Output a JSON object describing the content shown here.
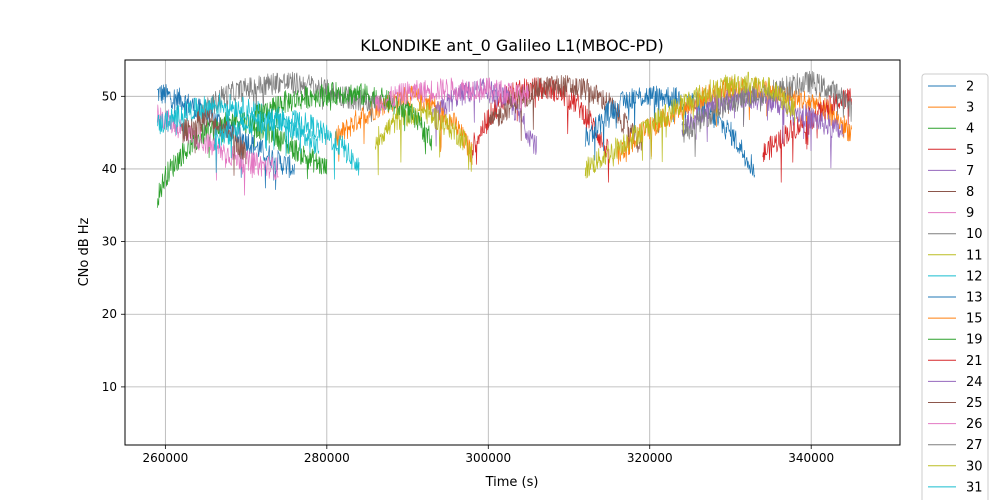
{
  "chart_data": {
    "type": "line",
    "title": "KLONDIKE ant_0 Galileo L1(MBOC-PD)",
    "xlabel": "Time (s)",
    "ylabel": "CNo dB Hz",
    "xlim": [
      255000,
      351000
    ],
    "ylim": [
      2,
      55
    ],
    "xticks": [
      {
        "value": 260000,
        "label": "260000"
      },
      {
        "value": 280000,
        "label": "280000"
      },
      {
        "value": 300000,
        "label": "300000"
      },
      {
        "value": 320000,
        "label": "320000"
      },
      {
        "value": 340000,
        "label": "340000"
      }
    ],
    "yticks": [
      {
        "value": 10,
        "label": "10"
      },
      {
        "value": 20,
        "label": "20"
      },
      {
        "value": 30,
        "label": "30"
      },
      {
        "value": 40,
        "label": "40"
      },
      {
        "value": 50,
        "label": "50"
      }
    ],
    "grid": true,
    "legend_position": "outside-right",
    "series": [
      {
        "name": "2",
        "color": "#1f77b4",
        "points": [
          [
            259000,
            50.5
          ],
          [
            262000,
            49.5
          ],
          [
            266000,
            47
          ],
          [
            270000,
            44
          ],
          [
            274000,
            41
          ],
          [
            276000,
            40
          ]
        ]
      },
      {
        "name": "3",
        "color": "#ff7f0e",
        "points": [
          [
            281000,
            44
          ],
          [
            284000,
            47
          ],
          [
            287000,
            49
          ],
          [
            290000,
            50
          ],
          [
            293000,
            49
          ],
          [
            296000,
            46
          ],
          [
            298000,
            42
          ]
        ]
      },
      {
        "name": "4",
        "color": "#2ca02c",
        "points": [
          [
            259000,
            36
          ],
          [
            260000,
            39
          ],
          [
            262000,
            42
          ],
          [
            265000,
            45
          ],
          [
            269000,
            47
          ],
          [
            273000,
            45
          ],
          [
            277000,
            42
          ],
          [
            280000,
            40
          ]
        ]
      },
      {
        "name": "5",
        "color": "#d62728",
        "points": [
          [
            298000,
            43
          ],
          [
            300000,
            47
          ],
          [
            302000,
            50
          ],
          [
            305000,
            51
          ],
          [
            308000,
            51
          ],
          [
            311000,
            49
          ],
          [
            313000,
            46
          ],
          [
            315000,
            42
          ]
        ]
      },
      {
        "name": "7",
        "color": "#9467bd",
        "points": [
          [
            293000,
            47
          ],
          [
            296000,
            50
          ],
          [
            299000,
            51
          ],
          [
            302000,
            50
          ],
          [
            304000,
            47
          ],
          [
            306000,
            43
          ]
        ]
      },
      {
        "name": "8",
        "color": "#8c564b",
        "points": [
          [
            300000,
            46
          ],
          [
            303000,
            49
          ],
          [
            306000,
            51
          ],
          [
            309000,
            51.5
          ],
          [
            312000,
            51
          ],
          [
            315000,
            49
          ],
          [
            317000,
            46
          ],
          [
            319000,
            43
          ]
        ]
      },
      {
        "name": "9",
        "color": "#e377c2",
        "points": [
          [
            259000,
            47.5
          ],
          [
            262000,
            45.5
          ],
          [
            266000,
            43
          ],
          [
            270000,
            41
          ],
          [
            274000,
            40
          ]
        ]
      },
      {
        "name": "10",
        "color": "#7f7f7f",
        "points": [
          [
            264000,
            47
          ],
          [
            267000,
            50
          ],
          [
            270000,
            51
          ],
          [
            274000,
            52
          ],
          [
            278000,
            51.5
          ],
          [
            282000,
            50
          ],
          [
            286000,
            49
          ]
        ]
      },
      {
        "name": "11",
        "color": "#bcbd22",
        "points": [
          [
            286000,
            44
          ],
          [
            289000,
            47
          ],
          [
            292000,
            48
          ],
          [
            295000,
            46
          ],
          [
            298000,
            43
          ]
        ]
      },
      {
        "name": "12",
        "color": "#17becf",
        "points": [
          [
            259000,
            46
          ],
          [
            263000,
            48
          ],
          [
            267000,
            49
          ],
          [
            271000,
            48
          ],
          [
            275000,
            46
          ],
          [
            279000,
            43
          ]
        ]
      },
      {
        "name": "13",
        "color": "#1f77b4",
        "points": [
          [
            312000,
            44
          ],
          [
            315000,
            48
          ],
          [
            318000,
            50
          ],
          [
            322000,
            50
          ],
          [
            326000,
            49
          ],
          [
            330000,
            45
          ],
          [
            333000,
            40
          ]
        ]
      },
      {
        "name": "15",
        "color": "#ff7f0e",
        "points": [
          [
            316000,
            42
          ],
          [
            319000,
            45
          ],
          [
            322000,
            47
          ],
          [
            325000,
            49
          ],
          [
            329000,
            51
          ],
          [
            333000,
            51
          ],
          [
            337000,
            50
          ],
          [
            341000,
            49
          ],
          [
            345000,
            45
          ]
        ]
      },
      {
        "name": "19",
        "color": "#2ca02c",
        "points": [
          [
            271000,
            47
          ],
          [
            274000,
            49
          ],
          [
            278000,
            50
          ],
          [
            282000,
            50.5
          ],
          [
            286000,
            50
          ],
          [
            290000,
            48
          ],
          [
            293000,
            44
          ]
        ]
      },
      {
        "name": "21",
        "color": "#d62728",
        "points": [
          [
            334000,
            42
          ],
          [
            337000,
            45
          ],
          [
            340000,
            47
          ],
          [
            343000,
            49
          ],
          [
            345000,
            50
          ]
        ]
      },
      {
        "name": "24",
        "color": "#9467bd",
        "points": [
          [
            324000,
            46
          ],
          [
            328000,
            49
          ],
          [
            332000,
            50
          ],
          [
            336000,
            49
          ],
          [
            340000,
            47
          ],
          [
            344000,
            45
          ]
        ]
      },
      {
        "name": "25",
        "color": "#8c564b",
        "points": [
          [
            262000,
            45
          ],
          [
            265000,
            47
          ],
          [
            268000,
            45
          ],
          [
            270000,
            42
          ]
        ]
      },
      {
        "name": "26",
        "color": "#e377c2",
        "points": [
          [
            286000,
            49
          ],
          [
            290000,
            50.5
          ],
          [
            295000,
            51
          ],
          [
            300000,
            51
          ],
          [
            305000,
            50
          ]
        ]
      },
      {
        "name": "27",
        "color": "#7f7f7f",
        "points": [
          [
            324000,
            45
          ],
          [
            328000,
            48
          ],
          [
            332000,
            50
          ],
          [
            336000,
            51
          ],
          [
            340000,
            52
          ],
          [
            344000,
            50
          ],
          [
            345000,
            48
          ]
        ]
      },
      {
        "name": "30",
        "color": "#bcbd22",
        "points": [
          [
            312000,
            40
          ],
          [
            316000,
            43
          ],
          [
            320000,
            46
          ],
          [
            324000,
            49
          ],
          [
            328000,
            51
          ],
          [
            332000,
            52
          ],
          [
            335000,
            51
          ],
          [
            338000,
            48
          ]
        ]
      },
      {
        "name": "31",
        "color": "#17becf",
        "points": [
          [
            266000,
            44
          ],
          [
            270000,
            46
          ],
          [
            274000,
            47
          ],
          [
            278000,
            46
          ],
          [
            282000,
            43
          ],
          [
            284000,
            40
          ]
        ]
      }
    ]
  }
}
